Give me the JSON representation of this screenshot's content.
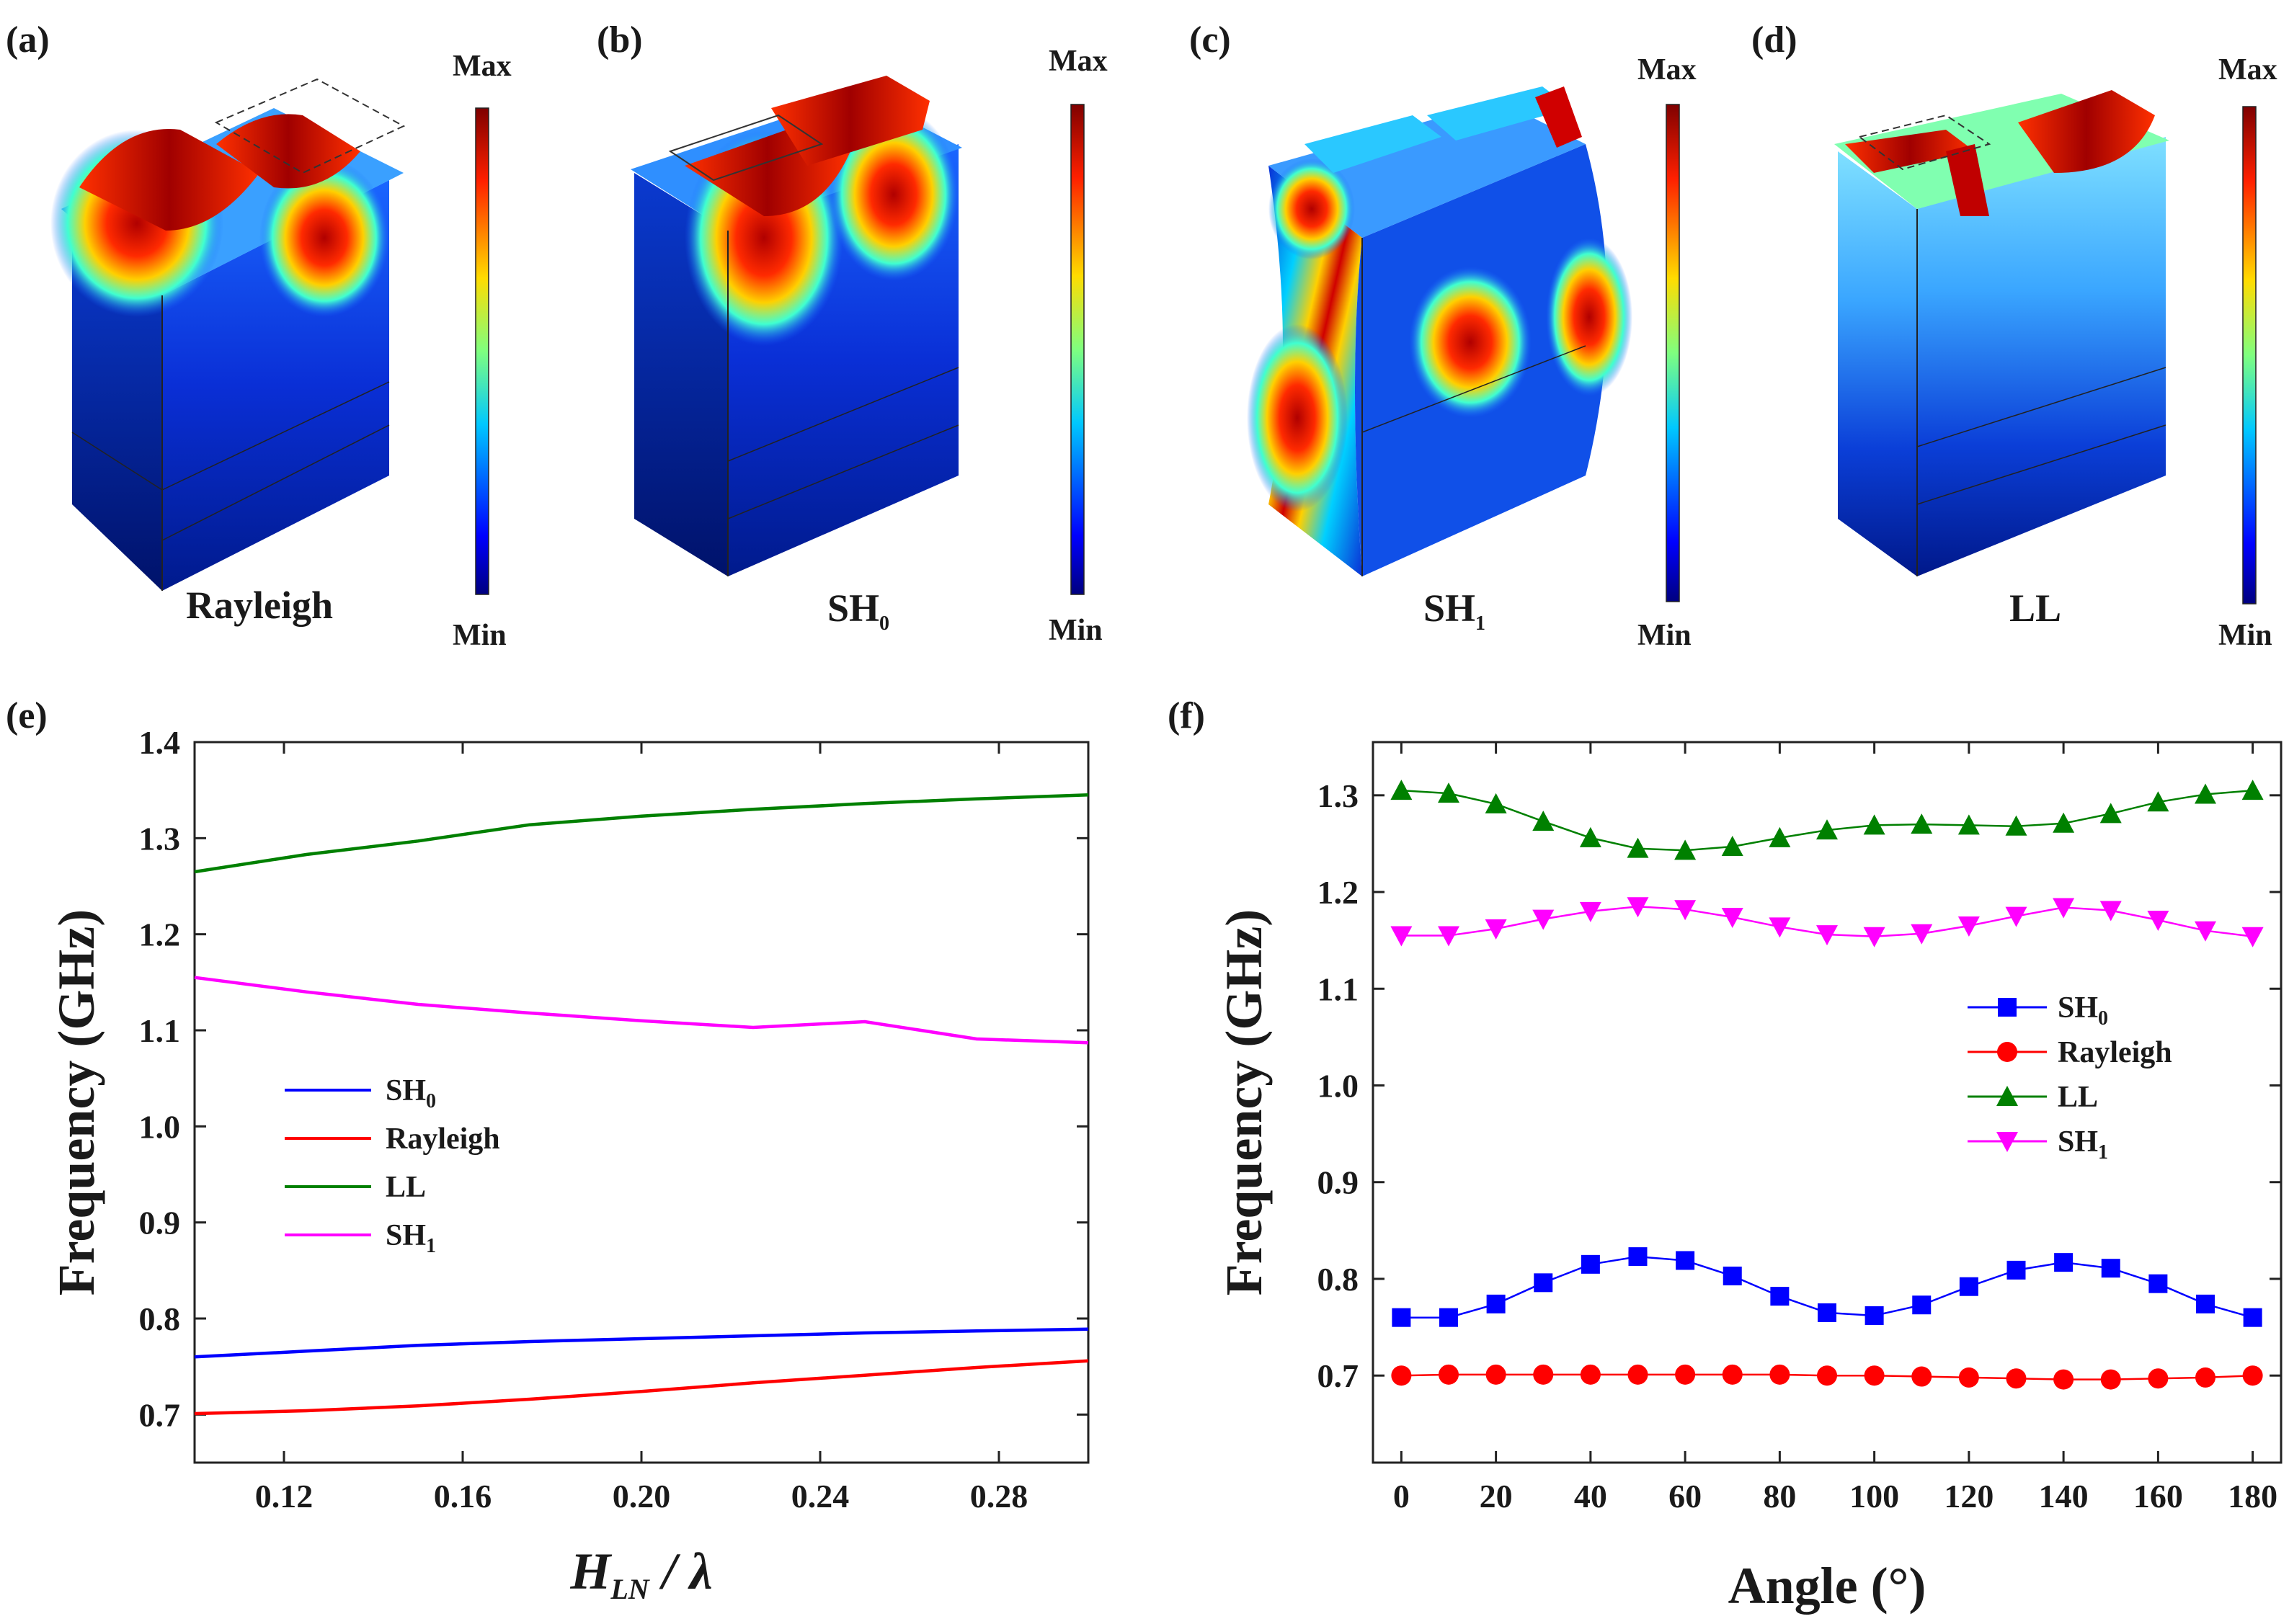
{
  "panels": {
    "a": {
      "label": "(a)",
      "mode": "Rayleigh",
      "mode_sub": "",
      "cb_max": "Max",
      "cb_min": "Min"
    },
    "b": {
      "label": "(b)",
      "mode": "SH",
      "mode_sub": "0",
      "cb_max": "Max",
      "cb_min": "Min"
    },
    "c": {
      "label": "(c)",
      "mode": "SH",
      "mode_sub": "1",
      "cb_max": "Max",
      "cb_min": "Min"
    },
    "d": {
      "label": "(d)",
      "mode": "LL",
      "mode_sub": "",
      "cb_max": "Max",
      "cb_min": "Min"
    },
    "e": {
      "label": "(e)"
    },
    "f": {
      "label": "(f)"
    }
  },
  "colors": {
    "SH0": "#0000ff",
    "Rayleigh": "#ff0000",
    "LL": "#008000",
    "SH1": "#ff00ff"
  },
  "chart_data": [
    {
      "id": "e",
      "type": "line",
      "xlabel": "H_LN / λ",
      "xlabel_main": "H",
      "xlabel_sub": "LN",
      "xlabel_rest": " / λ",
      "ylabel": "Frequency (GHz)",
      "xlim": [
        0.1,
        0.3
      ],
      "ylim": [
        0.65,
        1.4
      ],
      "xticks": [
        0.12,
        0.16,
        0.2,
        0.24,
        0.28
      ],
      "xtick_labels": [
        "0.12",
        "0.16",
        "0.20",
        "0.24",
        "0.28"
      ],
      "yticks": [
        0.7,
        0.8,
        0.9,
        1.0,
        1.1,
        1.2,
        1.3,
        1.4
      ],
      "ytick_labels": [
        "0.7",
        "0.8",
        "0.9",
        "1.0",
        "1.1",
        "1.2",
        "1.3",
        "1.4"
      ],
      "legend_position": "center-left",
      "x": [
        0.1,
        0.125,
        0.15,
        0.175,
        0.2,
        0.225,
        0.25,
        0.275,
        0.3
      ],
      "series": [
        {
          "key": "SH0",
          "name": "SH",
          "sub": "0",
          "values": [
            0.76,
            0.766,
            0.772,
            0.776,
            0.779,
            0.782,
            0.785,
            0.787,
            0.789
          ]
        },
        {
          "key": "Rayleigh",
          "name": "Rayleigh",
          "sub": "",
          "values": [
            0.701,
            0.704,
            0.709,
            0.716,
            0.724,
            0.733,
            0.741,
            0.749,
            0.756
          ]
        },
        {
          "key": "LL",
          "name": "LL",
          "sub": "",
          "values": [
            1.265,
            1.283,
            1.297,
            1.314,
            1.323,
            1.33,
            1.336,
            1.341,
            1.345
          ]
        },
        {
          "key": "SH1",
          "name": "SH",
          "sub": "1",
          "values": [
            1.155,
            1.14,
            1.127,
            1.118,
            1.11,
            1.103,
            1.109,
            1.091,
            1.087
          ]
        }
      ]
    },
    {
      "id": "f",
      "type": "line",
      "markers": true,
      "xlabel": "Angle (°)",
      "ylabel": "Frequency (GHz)",
      "xlim": [
        -6,
        186
      ],
      "ylim": [
        0.61,
        1.355
      ],
      "xticks": [
        0,
        20,
        40,
        60,
        80,
        100,
        120,
        140,
        160,
        180
      ],
      "xtick_labels": [
        "0",
        "20",
        "40",
        "60",
        "80",
        "100",
        "120",
        "140",
        "160",
        "180"
      ],
      "yticks": [
        0.7,
        0.8,
        0.9,
        1.0,
        1.1,
        1.2,
        1.3
      ],
      "ytick_labels": [
        "0.7",
        "0.8",
        "0.9",
        "1.0",
        "1.1",
        "1.2",
        "1.3"
      ],
      "legend_position": "center-right",
      "x": [
        0,
        10,
        20,
        30,
        40,
        50,
        60,
        70,
        80,
        90,
        100,
        110,
        120,
        130,
        140,
        150,
        160,
        170,
        180
      ],
      "series": [
        {
          "key": "SH0",
          "name": "SH",
          "sub": "0",
          "marker": "square",
          "values": [
            0.76,
            0.76,
            0.774,
            0.796,
            0.815,
            0.823,
            0.819,
            0.803,
            0.782,
            0.765,
            0.762,
            0.773,
            0.792,
            0.809,
            0.817,
            0.811,
            0.795,
            0.774,
            0.76
          ]
        },
        {
          "key": "Rayleigh",
          "name": "Rayleigh",
          "sub": "",
          "marker": "circle",
          "values": [
            0.7,
            0.701,
            0.701,
            0.701,
            0.701,
            0.701,
            0.701,
            0.701,
            0.701,
            0.7,
            0.7,
            0.699,
            0.698,
            0.697,
            0.696,
            0.696,
            0.697,
            0.698,
            0.7
          ]
        },
        {
          "key": "LL",
          "name": "LL",
          "sub": "",
          "marker": "triangle-up",
          "values": [
            1.305,
            1.302,
            1.291,
            1.273,
            1.256,
            1.245,
            1.243,
            1.247,
            1.256,
            1.264,
            1.269,
            1.27,
            1.269,
            1.268,
            1.271,
            1.281,
            1.293,
            1.301,
            1.305
          ]
        },
        {
          "key": "SH1",
          "name": "SH",
          "sub": "1",
          "marker": "triangle-down",
          "values": [
            1.155,
            1.155,
            1.162,
            1.172,
            1.18,
            1.185,
            1.182,
            1.174,
            1.164,
            1.156,
            1.154,
            1.157,
            1.165,
            1.175,
            1.184,
            1.181,
            1.171,
            1.16,
            1.154
          ]
        }
      ]
    }
  ]
}
